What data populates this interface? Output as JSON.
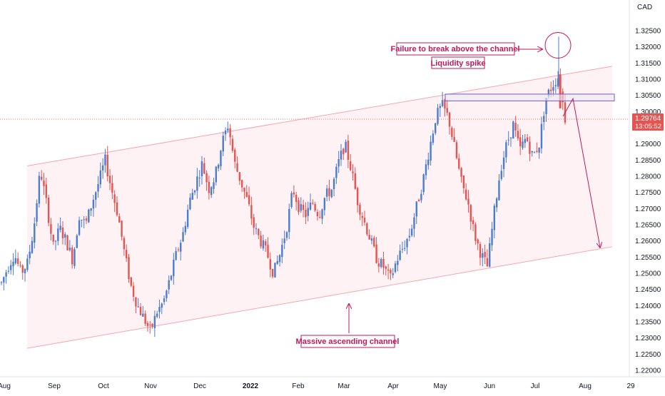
{
  "chart_data": {
    "type": "candlestick",
    "currency": "CAD",
    "y_ticks": [
      "1.32500",
      "1.32000",
      "1.31500",
      "1.31000",
      "1.30500",
      "1.30000",
      "1.29500",
      "1.29000",
      "1.28500",
      "1.28000",
      "1.27500",
      "1.27000",
      "1.26500",
      "1.26000",
      "1.25500",
      "1.25000",
      "1.24500",
      "1.24000",
      "1.23500",
      "1.23000",
      "1.22500",
      "1.22000"
    ],
    "ylim": [
      1.218,
      1.3345
    ],
    "x_ticks": [
      "Aug",
      "Sep",
      "Oct",
      "Nov",
      "Dec",
      "2022",
      "Feb",
      "Mar",
      "Apr",
      "May",
      "Jun",
      "Jul",
      "Aug",
      "29"
    ],
    "bold_x_tick": "2022",
    "current_price": {
      "value": "1.29764",
      "countdown": "13:05:52"
    },
    "annotations": {
      "failure": "Failure to break above the channel",
      "liquidity": "Liquidity spike",
      "channel": "Massive ascending channel"
    },
    "channel": {
      "upper": {
        "start_price": 1.2832,
        "end_price": 1.314
      },
      "lower": {
        "start_price": 1.2268,
        "end_price": 1.2582
      }
    },
    "resistance_zone": {
      "low": 1.3033,
      "high": 1.3054
    },
    "projection_target": 1.258,
    "colors": {
      "up": "#4a7ccf",
      "down": "#e55451",
      "channel": "#f4a6b0",
      "annotation": "#c2185b",
      "price_line": "#e57373"
    },
    "price_path": [
      1.247,
      1.252,
      1.256,
      1.25,
      1.253,
      1.264,
      1.282,
      1.271,
      1.258,
      1.264,
      1.26,
      1.254,
      1.268,
      1.265,
      1.272,
      1.278,
      1.285,
      1.276,
      1.268,
      1.256,
      1.246,
      1.24,
      1.236,
      1.232,
      1.238,
      1.241,
      1.248,
      1.256,
      1.262,
      1.272,
      1.278,
      1.284,
      1.276,
      1.28,
      1.29,
      1.296,
      1.284,
      1.278,
      1.272,
      1.264,
      1.26,
      1.256,
      1.25,
      1.256,
      1.264,
      1.276,
      1.27,
      1.268,
      1.272,
      1.268,
      1.274,
      1.276,
      1.284,
      1.29,
      1.282,
      1.272,
      1.266,
      1.26,
      1.254,
      1.252,
      1.248,
      1.254,
      1.258,
      1.262,
      1.27,
      1.278,
      1.288,
      1.298,
      1.302,
      1.298,
      1.288,
      1.278,
      1.272,
      1.262,
      1.256,
      1.252,
      1.268,
      1.282,
      1.29,
      1.296,
      1.288,
      1.292,
      1.286,
      1.29,
      1.304,
      1.308,
      1.311,
      1.298
    ]
  }
}
